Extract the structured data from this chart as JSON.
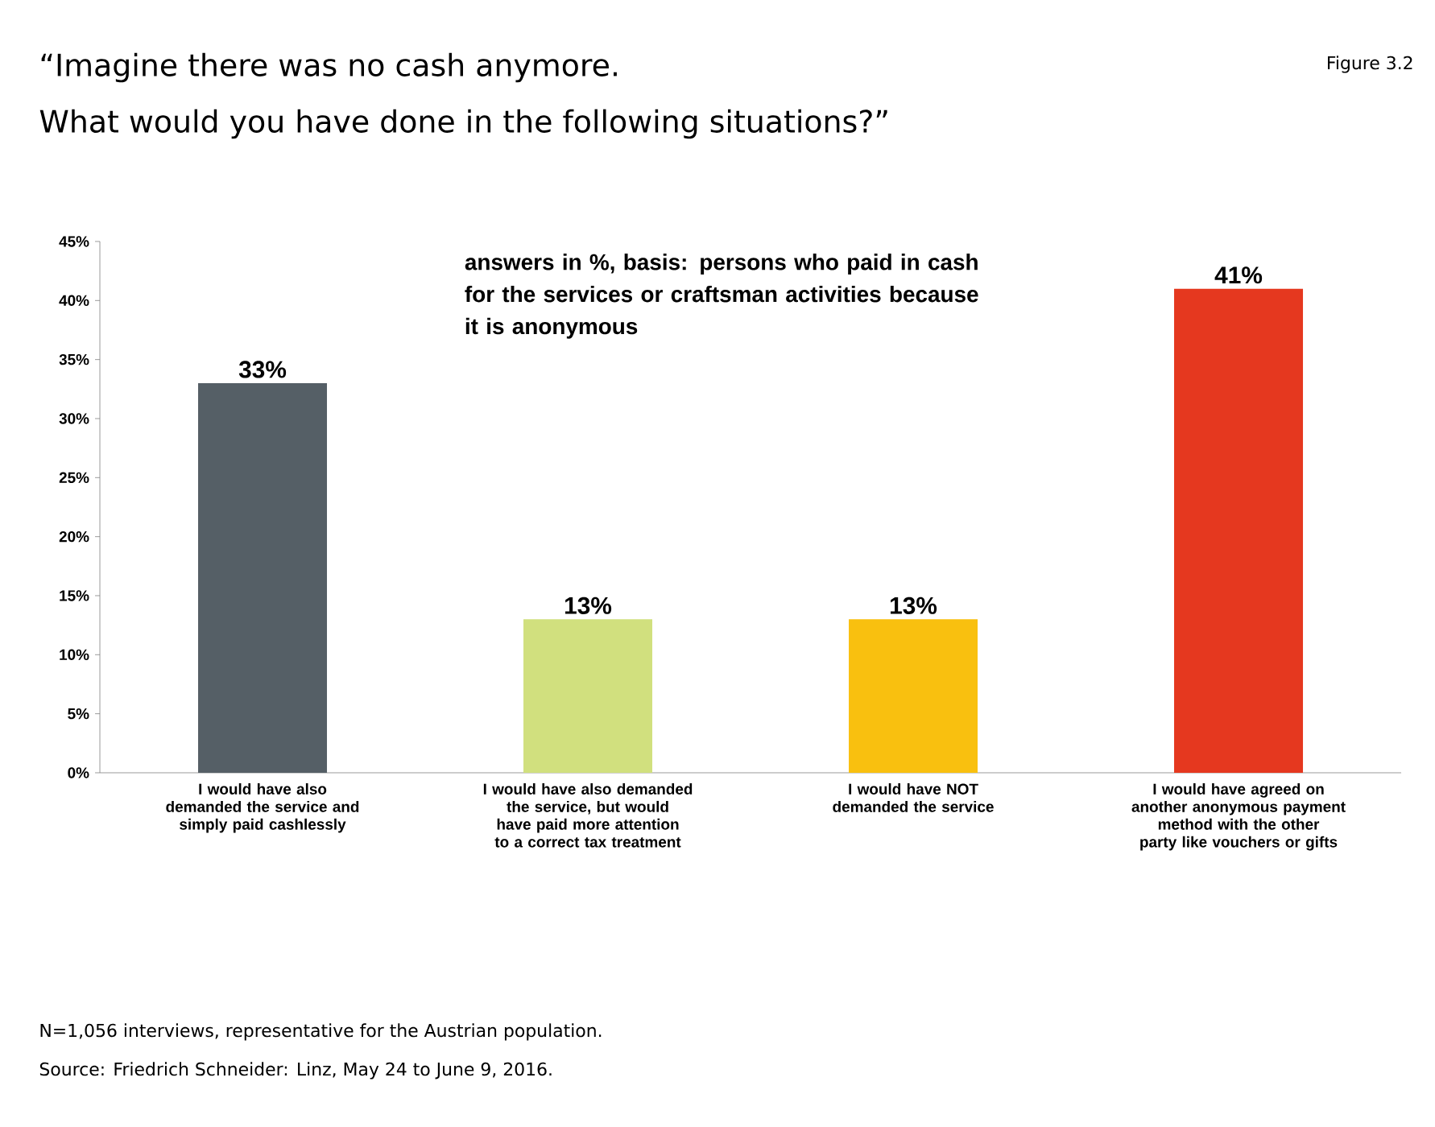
{
  "chart_data": {
    "type": "bar",
    "title": "“Imagine there was no cash anymore.",
    "subtitle": "What would you have done in the following situations?”",
    "categories": [
      "I would have also demanded the service and simply paid cashlessly",
      "I would have also demanded the service, but would have paid more attention to a correct tax treatment",
      "I would have NOT demanded the service",
      "I would have agreed on another anonymous payment method with the other party like vouchers or gifts"
    ],
    "values": [
      33,
      13,
      13,
      41
    ],
    "value_labels": [
      "33%",
      "13%",
      "13%",
      "41%"
    ],
    "colors": [
      "#555f66",
      "#d1e07e",
      "#f9c00f",
      "#e5381f"
    ],
    "ylim": [
      0,
      45
    ],
    "yticks": [
      {
        "value": 0,
        "label": "0%"
      },
      {
        "value": 5,
        "label": "5%"
      },
      {
        "value": 10,
        "label": "10%"
      },
      {
        "value": 15,
        "label": "15%"
      },
      {
        "value": 20,
        "label": "20%"
      },
      {
        "value": 25,
        "label": "25%"
      },
      {
        "value": 30,
        "label": "30%"
      },
      {
        "value": 35,
        "label": "35%"
      },
      {
        "value": 40,
        "label": "40%"
      },
      {
        "value": 45,
        "label": "45%"
      }
    ],
    "grid": false,
    "annotations": [
      "Figure 3.2",
      "answers in %, basis: persons who paid in cash for the services or craftsman activities because it is anonymous",
      "N=1,056 interviews, representative for the Austrian population.",
      "Source: Friedrich Schneider: Linz, May 24 to June 9, 2016."
    ]
  }
}
